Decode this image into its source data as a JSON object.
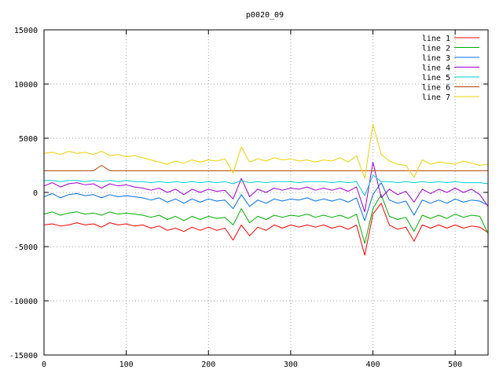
{
  "chart_data": {
    "type": "line",
    "title": "p0020_09",
    "xlabel": "",
    "ylabel": "",
    "xlim": [
      0,
      540
    ],
    "ylim": [
      -15000,
      15000
    ],
    "x_ticks": [
      0,
      100,
      200,
      300,
      400,
      500
    ],
    "y_ticks": [
      -15000,
      -10000,
      -5000,
      0,
      5000,
      10000,
      15000
    ],
    "grid": true,
    "legend_position": "top-right",
    "x": [
      0,
      10,
      20,
      30,
      40,
      50,
      60,
      70,
      80,
      90,
      100,
      110,
      120,
      130,
      140,
      150,
      160,
      170,
      180,
      190,
      200,
      210,
      220,
      230,
      240,
      250,
      260,
      270,
      280,
      290,
      300,
      310,
      320,
      330,
      340,
      350,
      360,
      370,
      380,
      390,
      400,
      410,
      420,
      430,
      440,
      450,
      460,
      470,
      480,
      490,
      500,
      510,
      520,
      530,
      540
    ],
    "series": [
      {
        "name": "line 1",
        "color": "#ff0000",
        "values": [
          -3000,
          -2900,
          -3100,
          -3000,
          -2800,
          -3000,
          -2900,
          -3200,
          -2800,
          -3000,
          -2900,
          -3100,
          -3000,
          -3300,
          -3100,
          -3500,
          -3300,
          -3600,
          -3200,
          -3500,
          -3200,
          -3500,
          -3300,
          -4400,
          -3000,
          -4000,
          -3200,
          -3500,
          -3000,
          -3300,
          -3000,
          -3200,
          -3000,
          -3200,
          -3000,
          -3300,
          -3100,
          -3400,
          -3000,
          -5800,
          -2000,
          -1000,
          -3000,
          -3400,
          -3200,
          -4500,
          -3000,
          -3300,
          -3000,
          -3300,
          -3000,
          -3300,
          -3100,
          -3200,
          -3700
        ]
      },
      {
        "name": "line 2",
        "color": "#00b000",
        "values": [
          -2000,
          -1800,
          -2100,
          -1900,
          -1800,
          -2000,
          -1900,
          -2100,
          -1800,
          -2000,
          -1900,
          -2000,
          -2100,
          -2300,
          -2100,
          -2500,
          -2200,
          -2600,
          -2200,
          -2500,
          -2200,
          -2400,
          -2300,
          -3000,
          -1500,
          -2800,
          -2200,
          -2500,
          -2100,
          -2300,
          -2100,
          -2200,
          -2000,
          -2300,
          -2100,
          -2300,
          -2100,
          -2400,
          -2000,
          -4700,
          -1500,
          -200,
          -2200,
          -2500,
          -2300,
          -3600,
          -2100,
          -2400,
          -2100,
          -2400,
          -2000,
          -2300,
          -2100,
          -2200,
          -3800
        ]
      },
      {
        "name": "line 3",
        "color": "#0070e0",
        "values": [
          -400,
          -100,
          -500,
          -200,
          -100,
          -300,
          -200,
          -500,
          -200,
          -400,
          -300,
          -400,
          -500,
          -700,
          -500,
          -900,
          -600,
          -1000,
          -600,
          -900,
          -600,
          -800,
          -700,
          -1500,
          -200,
          -1300,
          -700,
          -1000,
          -600,
          -800,
          -600,
          -700,
          -500,
          -800,
          -600,
          -800,
          -600,
          -900,
          -500,
          -2600,
          -200,
          900,
          -700,
          -1000,
          -800,
          -2100,
          -700,
          -1000,
          -700,
          -1000,
          -600,
          -900,
          -700,
          -800,
          -1200
        ]
      },
      {
        "name": "line 4",
        "color": "#a000d0",
        "values": [
          600,
          900,
          500,
          800,
          900,
          700,
          800,
          400,
          800,
          600,
          700,
          500,
          400,
          200,
          400,
          0,
          300,
          -200,
          300,
          0,
          300,
          100,
          200,
          -600,
          1300,
          -400,
          300,
          0,
          400,
          200,
          400,
          300,
          500,
          200,
          400,
          200,
          400,
          100,
          500,
          -1800,
          2800,
          -500,
          300,
          -200,
          100,
          -900,
          300,
          -100,
          300,
          0,
          400,
          0,
          300,
          -200,
          -1300
        ]
      },
      {
        "name": "line 5",
        "color": "#00d0d0",
        "values": [
          1100,
          1100,
          1000,
          1100,
          1100,
          1000,
          1100,
          1000,
          1100,
          1000,
          1100,
          1000,
          1000,
          900,
          1000,
          900,
          1000,
          900,
          1000,
          900,
          1000,
          900,
          1000,
          800,
          1100,
          900,
          1000,
          900,
          1000,
          1000,
          1000,
          900,
          1000,
          1000,
          1000,
          900,
          1000,
          900,
          1000,
          -300,
          1600,
          1000,
          1000,
          900,
          1000,
          900,
          1000,
          900,
          1000,
          900,
          1000,
          900,
          900,
          900,
          800
        ]
      },
      {
        "name": "line 6",
        "color": "#b04000",
        "values": [
          2000,
          2000,
          2000,
          2000,
          2000,
          2000,
          2000,
          2500,
          2000,
          2000,
          2000,
          2000,
          2000,
          2000,
          2000,
          2000,
          2000,
          2000,
          2000,
          2000,
          2000,
          2000,
          2000,
          2000,
          2000,
          2000,
          2000,
          2000,
          2000,
          2000,
          2000,
          2000,
          2000,
          2000,
          2000,
          2000,
          2000,
          2000,
          2000,
          2000,
          2000,
          2000,
          2000,
          2000,
          2000,
          2000,
          2000,
          2000,
          2000,
          2000,
          2000,
          2000,
          2000,
          2000,
          2000
        ]
      },
      {
        "name": "line 7",
        "color": "#f0d000",
        "values": [
          3600,
          3700,
          3500,
          3800,
          3600,
          3700,
          3500,
          3800,
          3400,
          3500,
          3300,
          3400,
          3200,
          3000,
          2800,
          2600,
          2900,
          2700,
          3000,
          2800,
          3000,
          2900,
          3100,
          1800,
          4200,
          2800,
          3100,
          2900,
          3200,
          3000,
          3100,
          2900,
          3000,
          2800,
          3000,
          2900,
          3200,
          2800,
          3400,
          1300,
          6300,
          3500,
          2900,
          2600,
          2500,
          1400,
          3000,
          2600,
          2800,
          2700,
          2600,
          2900,
          2700,
          2500,
          2600
        ]
      }
    ]
  }
}
